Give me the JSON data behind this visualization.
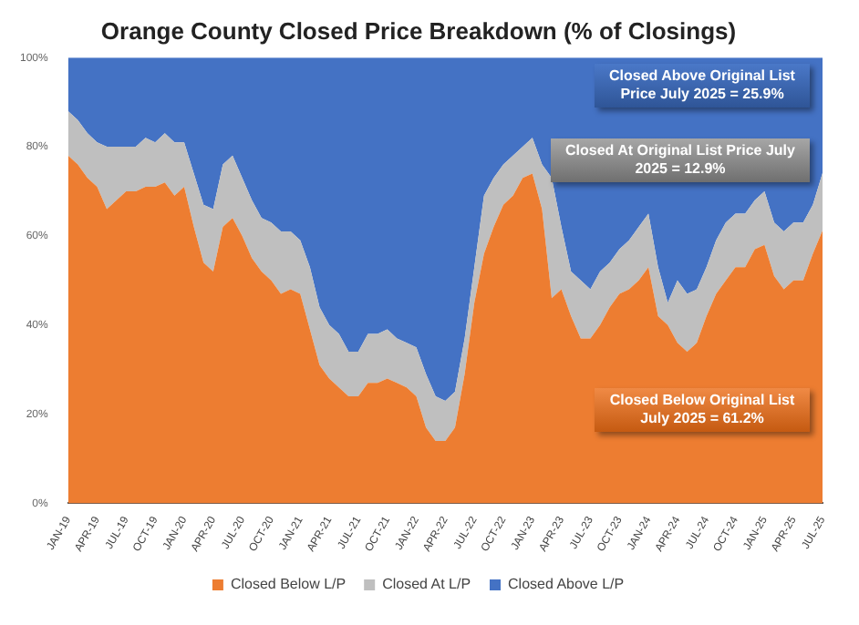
{
  "chart_data": {
    "type": "area",
    "title": "Orange County Closed Price Breakdown (% of Closings)",
    "categories": [
      "JAN-19",
      null,
      null,
      "APR-19",
      null,
      null,
      "JUL-19",
      null,
      null,
      "OCT-19",
      null,
      null,
      "JAN-20",
      null,
      null,
      "APR-20",
      null,
      null,
      "JUL-20",
      null,
      null,
      "OCT-20",
      null,
      null,
      "JAN-21",
      null,
      null,
      "APR-21",
      null,
      null,
      "JUL-21",
      null,
      null,
      "OCT-21",
      null,
      null,
      "JAN-22",
      null,
      null,
      "APR-22",
      null,
      null,
      "JUL-22",
      null,
      null,
      "OCT-22",
      null,
      null,
      "JAN-23",
      null,
      null,
      "APR-23",
      null,
      null,
      "JUL-23",
      null,
      null,
      "OCT-23",
      null,
      null,
      "JAN-24",
      null,
      null,
      "APR-24",
      null,
      null,
      "JUL-24",
      null,
      null,
      "OCT-24",
      null,
      null,
      "JAN-25",
      null,
      null,
      "APR-25",
      null,
      null,
      "JUL-25"
    ],
    "series": [
      {
        "name": "Closed Below L/P",
        "color": "#ed7d31",
        "values": [
          78,
          76,
          73,
          71,
          66,
          68,
          70,
          70,
          71,
          71,
          72,
          69,
          71,
          62,
          54,
          52,
          62,
          64,
          60,
          55,
          52,
          50,
          47,
          48,
          47,
          39,
          31,
          28,
          26,
          24,
          24,
          27,
          27,
          28,
          27,
          26,
          24,
          17,
          14,
          14,
          17,
          29,
          45,
          56,
          62,
          67,
          69,
          73,
          74,
          66,
          46,
          48,
          42,
          37,
          37,
          40,
          44,
          47,
          48,
          50,
          53,
          42,
          40,
          36,
          34,
          36,
          42,
          47,
          50,
          53,
          53,
          57,
          58,
          51,
          48,
          50,
          50,
          56,
          61.2
        ]
      },
      {
        "name": "Closed At L/P",
        "color": "#bfbfbf",
        "values": [
          10,
          10,
          10,
          10,
          14,
          12,
          10,
          10,
          11,
          10,
          11,
          12,
          10,
          12,
          13,
          14,
          14,
          14,
          13,
          13,
          12,
          13,
          14,
          13,
          12,
          14,
          13,
          12,
          12,
          10,
          10,
          11,
          11,
          11,
          10,
          10,
          11,
          12,
          10,
          9,
          8,
          8,
          8,
          13,
          11,
          9,
          9,
          7,
          8,
          10,
          27,
          14,
          10,
          13,
          11,
          12,
          10,
          10,
          11,
          12,
          12,
          11,
          5,
          14,
          13,
          12,
          11,
          12,
          13,
          12,
          12,
          11,
          12,
          12,
          13,
          13,
          13,
          11,
          12.9
        ]
      },
      {
        "name": "Closed Above L/P",
        "color": "#4472c4",
        "values": [
          12,
          14,
          17,
          19,
          20,
          20,
          20,
          20,
          18,
          19,
          17,
          19,
          19,
          26,
          33,
          34,
          24,
          22,
          27,
          32,
          36,
          37,
          39,
          39,
          41,
          47,
          56,
          60,
          62,
          66,
          66,
          62,
          62,
          61,
          63,
          64,
          65,
          71,
          76,
          77,
          75,
          63,
          47,
          31,
          27,
          24,
          22,
          20,
          18,
          24,
          27,
          38,
          48,
          50,
          52,
          48,
          46,
          43,
          41,
          38,
          35,
          47,
          55,
          50,
          53,
          52,
          47,
          41,
          37,
          35,
          35,
          32,
          30,
          37,
          39,
          37,
          37,
          33,
          25.9
        ]
      }
    ],
    "stacked": true,
    "ylim": [
      0,
      100
    ],
    "yticks": [
      {
        "value": 0,
        "label": "0%"
      },
      {
        "value": 20,
        "label": "20%"
      },
      {
        "value": 40,
        "label": "40%"
      },
      {
        "value": 60,
        "label": "60%"
      },
      {
        "value": 80,
        "label": "80%"
      },
      {
        "value": 100,
        "label": "100%"
      }
    ],
    "grid": false,
    "legend": "bottom",
    "annotations": [
      "Closed Above Original List Price July 2025 = 25.9%",
      "Closed At Original List Price July 2025 = 12.9%",
      "Closed Below Original List July 2025 = 61.2%"
    ]
  }
}
